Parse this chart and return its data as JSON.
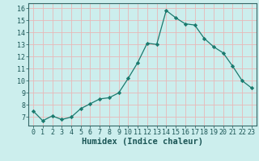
{
  "x": [
    0,
    1,
    2,
    3,
    4,
    5,
    6,
    7,
    8,
    9,
    10,
    11,
    12,
    13,
    14,
    15,
    16,
    17,
    18,
    19,
    20,
    21,
    22,
    23
  ],
  "y": [
    7.5,
    6.7,
    7.1,
    6.8,
    7.0,
    7.7,
    8.1,
    8.5,
    8.6,
    9.0,
    10.2,
    11.5,
    13.1,
    13.0,
    15.8,
    15.2,
    14.7,
    14.6,
    13.5,
    12.8,
    12.3,
    11.2,
    10.0,
    9.4
  ],
  "line_color": "#1a7a6e",
  "marker": "D",
  "marker_size": 2.2,
  "bg_color": "#cceeed",
  "grid_color": "#e8b8b8",
  "xlabel": "Humidex (Indice chaleur)",
  "ylim": [
    6.3,
    16.4
  ],
  "xlim": [
    -0.5,
    23.5
  ],
  "yticks": [
    7,
    8,
    9,
    10,
    11,
    12,
    13,
    14,
    15,
    16
  ],
  "xticks": [
    0,
    1,
    2,
    3,
    4,
    5,
    6,
    7,
    8,
    9,
    10,
    11,
    12,
    13,
    14,
    15,
    16,
    17,
    18,
    19,
    20,
    21,
    22,
    23
  ],
  "tick_label_fontsize": 6.0,
  "xlabel_fontsize": 7.5,
  "xlabel_weight": "bold"
}
